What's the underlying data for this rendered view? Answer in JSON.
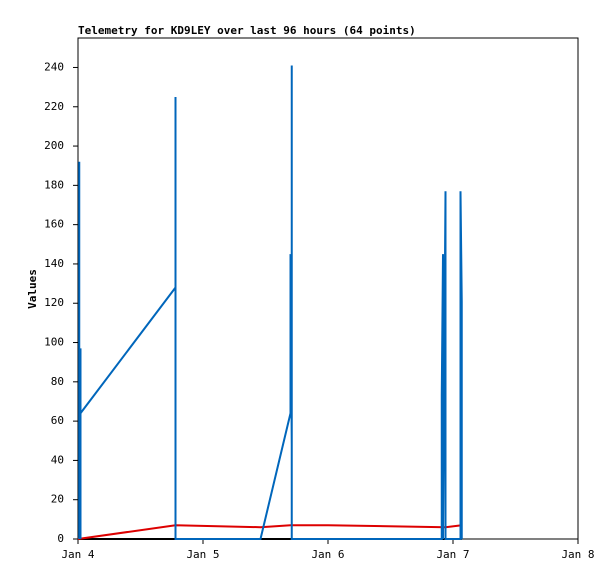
{
  "chart_data": {
    "type": "line",
    "title": "Telemetry for KD9LEY over last 96 hours (64 points)",
    "ylabel": "Values",
    "xlim": [
      0,
      4
    ],
    "xticks": [
      {
        "value": 0,
        "label": "Jan 4"
      },
      {
        "value": 1,
        "label": "Jan 5"
      },
      {
        "value": 2,
        "label": "Jan 6"
      },
      {
        "value": 3,
        "label": "Jan 7"
      },
      {
        "value": 4,
        "label": "Jan 8"
      }
    ],
    "ylim": [
      0,
      255
    ],
    "yticks": [
      0,
      20,
      40,
      60,
      80,
      100,
      120,
      140,
      160,
      180,
      200,
      220,
      240
    ],
    "grid": false,
    "series": [
      {
        "color": "#000000",
        "x": [
          0,
          3.07
        ],
        "values": [
          0,
          0
        ]
      },
      {
        "color": "#dd0000",
        "x": [
          0,
          0.78,
          1.46,
          1.7,
          2.0,
          2.94,
          3.07
        ],
        "values": [
          0,
          7,
          6,
          7,
          7,
          6,
          7
        ]
      },
      {
        "color": "#0066bb",
        "x": [
          0.01,
          0.01,
          0.01,
          0.02,
          0.02,
          0.02,
          0.78,
          0.78,
          0.78,
          0.78,
          1.46,
          1.7,
          1.7,
          1.71,
          1.71,
          1.71,
          2.91,
          2.91,
          2.92,
          2.92,
          2.94,
          2.94,
          3.06,
          3.06,
          3.07,
          3.07,
          3.07
        ],
        "values": [
          0,
          192,
          0,
          97,
          0,
          64,
          128,
          88,
          225,
          0,
          0,
          64,
          145,
          48,
          241,
          0,
          0,
          73,
          145,
          0,
          177,
          0,
          0,
          177,
          121,
          0,
          8
        ]
      }
    ]
  }
}
